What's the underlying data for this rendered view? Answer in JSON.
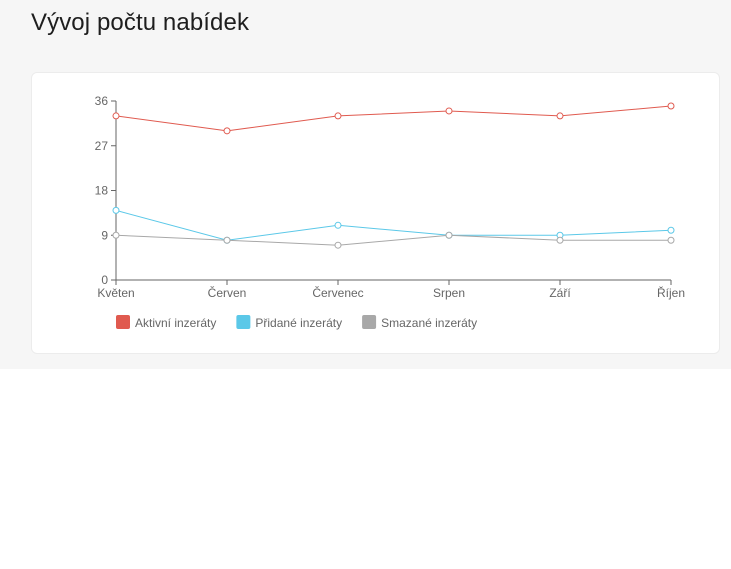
{
  "page": {
    "title": "Vývoj počtu nabídek"
  },
  "chart_data": {
    "type": "line",
    "title": "",
    "xlabel": "",
    "ylabel": "",
    "categories": [
      "Květen",
      "Červen",
      "Červenec",
      "Srpen",
      "Září",
      "Říjen"
    ],
    "ylim": [
      0,
      36
    ],
    "yticks": [
      0,
      9,
      18,
      27,
      36
    ],
    "grid": false,
    "legend_position": "bottom-left",
    "series": [
      {
        "name": "Aktivní inzeráty",
        "color": "#e05a4f",
        "values": [
          33,
          30,
          33,
          34,
          33,
          35
        ]
      },
      {
        "name": "Přidané inzeráty",
        "color": "#5bc8e8",
        "values": [
          14,
          8,
          11,
          9,
          9,
          10
        ]
      },
      {
        "name": "Smazané inzeráty",
        "color": "#a8a8a8",
        "values": [
          9,
          8,
          7,
          9,
          8,
          8
        ]
      }
    ]
  }
}
